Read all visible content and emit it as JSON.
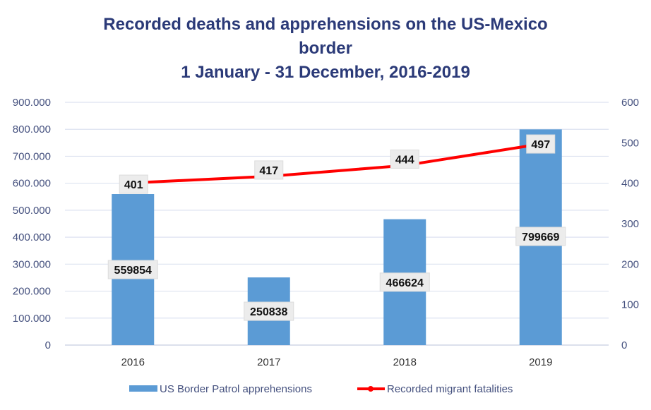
{
  "chart_data": {
    "type": "bar+line",
    "title": [
      "Recorded deaths and apprehensions on the US-Mexico",
      "border",
      "1 January - 31 December, 2016-2019"
    ],
    "categories": [
      "2016",
      "2017",
      "2018",
      "2019"
    ],
    "series": [
      {
        "name": "US Border Patrol apprehensions",
        "type": "bar",
        "axis": "left",
        "values": [
          559854,
          250838,
          466624,
          799669
        ],
        "labels": [
          "559854",
          "250838",
          "466624",
          "799669"
        ],
        "color": "#5b9bd5"
      },
      {
        "name": "Recorded migrant fatalities",
        "type": "line",
        "axis": "right",
        "values": [
          401,
          417,
          444,
          497
        ],
        "labels": [
          "401",
          "417",
          "444",
          "497"
        ],
        "color": "#ff0000"
      }
    ],
    "y_left": {
      "lim": [
        0,
        900000
      ],
      "ticks": [
        0,
        100000,
        200000,
        300000,
        400000,
        500000,
        600000,
        700000,
        800000,
        900000
      ],
      "tick_labels": [
        "0",
        "100.000",
        "200.000",
        "300.000",
        "400.000",
        "500.000",
        "600.000",
        "700.000",
        "800.000",
        "900.000"
      ]
    },
    "y_right": {
      "lim": [
        0,
        600
      ],
      "ticks": [
        0,
        100,
        200,
        300,
        400,
        500,
        600
      ],
      "tick_labels": [
        "0",
        "100",
        "200",
        "300",
        "400",
        "500",
        "600"
      ]
    },
    "grid": true,
    "legend": "bottom"
  }
}
